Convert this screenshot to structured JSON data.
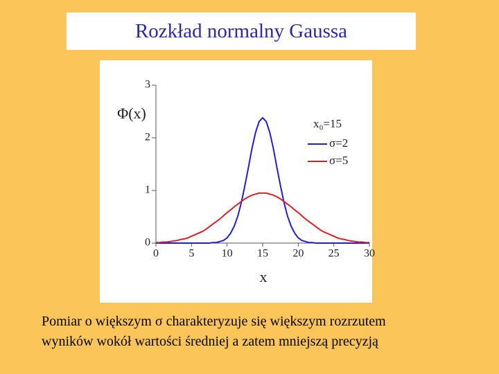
{
  "slide_title": "Rozkład normalny Gaussa",
  "caption": [
    "Pomiar o większym σ charakteryzuje się większym rozrzutem",
    "wyników wokół wartości średniej a zatem  mniejszą precyzją"
  ],
  "chart_data": {
    "type": "line",
    "x_label": "x",
    "y_label": "Φ(x)",
    "legend_title": "x₀=15",
    "x": [
      0,
      0.5,
      1,
      1.5,
      2,
      2.5,
      3,
      3.5,
      4,
      4.5,
      5,
      5.5,
      6,
      6.5,
      7,
      7.5,
      8,
      8.5,
      9,
      9.5,
      10,
      10.5,
      11,
      11.5,
      12,
      12.5,
      13,
      13.5,
      14,
      14.5,
      15,
      15.5,
      16,
      16.5,
      17,
      17.5,
      18,
      18.5,
      19,
      19.5,
      20,
      20.5,
      21,
      21.5,
      22,
      22.5,
      23,
      23.5,
      24,
      24.5,
      25,
      25.5,
      26,
      26.5,
      27,
      27.5,
      28,
      28.5,
      29,
      29.5,
      30
    ],
    "series": [
      {
        "name": "σ=2",
        "color": "#1f1fd0",
        "values": [
          0,
          0,
          0,
          0,
          0,
          0,
          0,
          0,
          0,
          0,
          0,
          0,
          0,
          0,
          0,
          0,
          0.01,
          0.01,
          0.03,
          0.05,
          0.1,
          0.19,
          0.32,
          0.51,
          0.77,
          1.09,
          1.44,
          1.8,
          2.1,
          2.31,
          2.38,
          2.31,
          2.1,
          1.8,
          1.44,
          1.09,
          0.77,
          0.51,
          0.32,
          0.19,
          0.1,
          0.05,
          0.03,
          0.01,
          0.01,
          0,
          0,
          0,
          0,
          0,
          0,
          0,
          0,
          0,
          0,
          0,
          0,
          0,
          0,
          0,
          0
        ]
      },
      {
        "name": "σ=5",
        "color": "#d42020",
        "values": [
          0.01,
          0.01,
          0.02,
          0.02,
          0.03,
          0.04,
          0.05,
          0.07,
          0.08,
          0.1,
          0.13,
          0.16,
          0.19,
          0.22,
          0.26,
          0.31,
          0.36,
          0.41,
          0.46,
          0.52,
          0.58,
          0.63,
          0.69,
          0.74,
          0.79,
          0.84,
          0.88,
          0.91,
          0.93,
          0.95,
          0.95,
          0.95,
          0.93,
          0.91,
          0.88,
          0.84,
          0.79,
          0.74,
          0.69,
          0.63,
          0.58,
          0.52,
          0.46,
          0.41,
          0.36,
          0.31,
          0.26,
          0.22,
          0.19,
          0.16,
          0.13,
          0.1,
          0.08,
          0.07,
          0.05,
          0.04,
          0.03,
          0.02,
          0.02,
          0.01,
          0.01
        ]
      }
    ],
    "xlim": [
      0,
      30
    ],
    "xticks": [
      0,
      5,
      10,
      15,
      20,
      25,
      30
    ],
    "ylim": [
      0,
      3
    ],
    "yticks": [
      0,
      1,
      2,
      3
    ],
    "legend": "upper right"
  }
}
